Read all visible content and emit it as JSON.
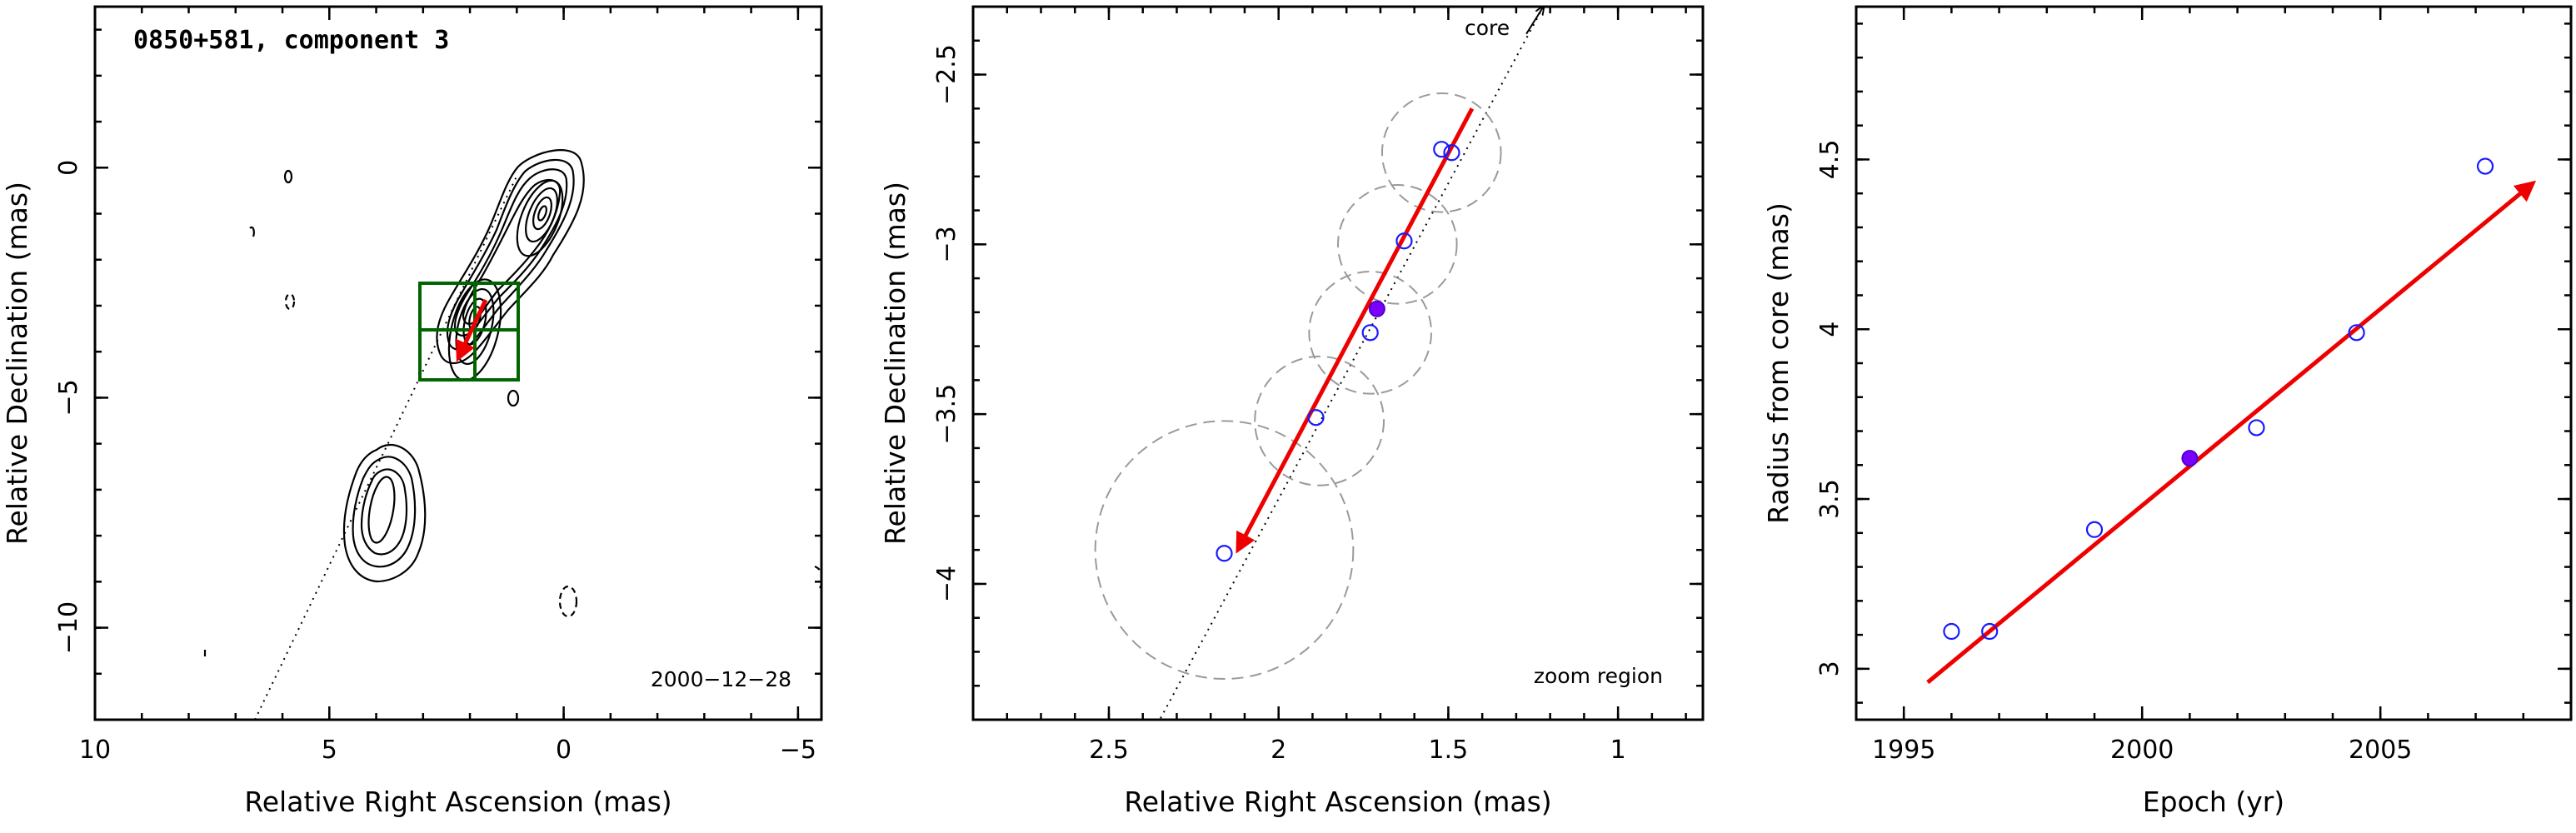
{
  "chart_data": [
    {
      "type": "contour",
      "title": "0850+581, component 3",
      "date_label": "2000−12−28",
      "xlabel": "Relative Right Ascension (mas)",
      "ylabel": "Relative Declination (mas)",
      "xlim": [
        10,
        -5.5
      ],
      "ylim": [
        -12,
        3.5
      ],
      "xticks": [
        10,
        5,
        0,
        -5
      ],
      "xtick_labels": [
        "10",
        "5",
        "0",
        "−5"
      ],
      "yticks": [
        0,
        -5,
        -10
      ],
      "ytick_labels": [
        "0",
        "−5",
        "−10"
      ],
      "colors": {
        "arrow": "#ee0000",
        "zoom_box": "#006400",
        "contours": "#000000"
      }
    },
    {
      "type": "scatter",
      "annotation_core": "core",
      "annotation_zoom": "zoom region",
      "xlabel": "Relative Right Ascension (mas)",
      "ylabel": "Relative Declination (mas)",
      "xlim": [
        2.9,
        0.75
      ],
      "ylim": [
        -4.4,
        -2.3
      ],
      "xticks": [
        2.5,
        2,
        1.5,
        1
      ],
      "xtick_labels": [
        "2.5",
        "2",
        "1.5",
        "1"
      ],
      "yticks": [
        -2.5,
        -3,
        -3.5,
        -4
      ],
      "ytick_labels": [
        "−2.5",
        "−3",
        "−3.5",
        "−4"
      ],
      "points": [
        {
          "x": 1.52,
          "y": -2.72,
          "filled": false
        },
        {
          "x": 1.49,
          "y": -2.73,
          "filled": false
        },
        {
          "x": 1.63,
          "y": -2.99,
          "filled": false
        },
        {
          "x": 1.71,
          "y": -3.19,
          "filled": true
        },
        {
          "x": 1.73,
          "y": -3.26,
          "filled": false
        },
        {
          "x": 1.89,
          "y": -3.51,
          "filled": false
        },
        {
          "x": 2.16,
          "y": -3.91,
          "filled": false
        }
      ],
      "circles": [
        {
          "x": 1.52,
          "y": -2.73,
          "r": 0.175
        },
        {
          "x": 1.65,
          "y": -3.0,
          "r": 0.175
        },
        {
          "x": 1.73,
          "y": -3.26,
          "r": 0.18
        },
        {
          "x": 1.88,
          "y": -3.52,
          "r": 0.19
        },
        {
          "x": 2.16,
          "y": -3.9,
          "r": 0.38
        }
      ],
      "fit_arrow": {
        "from": [
          1.43,
          -2.6
        ],
        "to": [
          2.12,
          -3.9
        ]
      },
      "track_line": {
        "from": [
          1.22,
          -2.3
        ],
        "to": [
          2.35,
          -4.4
        ]
      },
      "colors": {
        "points": "#1a1aff",
        "filled_point": "#7a00ff",
        "fit": "#ee0000",
        "circles": "#9a9a9a"
      }
    },
    {
      "type": "scatter",
      "xlabel": "Epoch (yr)",
      "ylabel": "Radius from core (mas)",
      "xlim": [
        1994,
        2009
      ],
      "ylim": [
        2.85,
        4.95
      ],
      "xticks": [
        1995,
        2000,
        2005
      ],
      "xtick_labels": [
        "1995",
        "2000",
        "2005"
      ],
      "yticks": [
        3,
        3.5,
        4,
        4.5
      ],
      "ytick_labels": [
        "3",
        "3.5",
        "4",
        "4.5"
      ],
      "points": [
        {
          "x": 1996.0,
          "y": 3.11,
          "filled": false
        },
        {
          "x": 1996.8,
          "y": 3.11,
          "filled": false
        },
        {
          "x": 1999.0,
          "y": 3.41,
          "filled": false
        },
        {
          "x": 2001.0,
          "y": 3.62,
          "filled": true
        },
        {
          "x": 2002.4,
          "y": 3.71,
          "filled": false
        },
        {
          "x": 2004.5,
          "y": 3.99,
          "filled": false
        },
        {
          "x": 2007.2,
          "y": 4.48,
          "filled": false
        }
      ],
      "fit_arrow": {
        "from": [
          1995.5,
          2.96
        ],
        "to": [
          2008.2,
          4.43
        ]
      },
      "colors": {
        "points": "#1a1aff",
        "filled_point": "#7a00ff",
        "fit": "#ee0000"
      }
    }
  ]
}
